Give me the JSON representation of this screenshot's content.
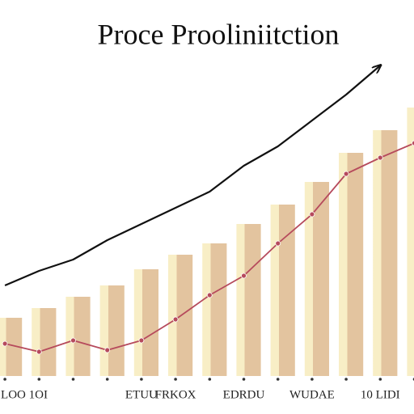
{
  "chart_data": {
    "type": "bar",
    "title": "Proce Prooliniitction",
    "categories": [
      "LOO 1OI",
      null,
      null,
      null,
      "ETUU",
      "FRKOX",
      null,
      "EDRDU",
      null,
      "WUDAE",
      null,
      "10 LIDI",
      null
    ],
    "values": [
      18,
      21,
      24.5,
      28,
      33,
      37.5,
      41,
      47,
      53,
      60,
      69,
      76,
      83
    ],
    "bar_colors": [
      "#f8eec6",
      "#e3c49f"
    ],
    "trend": {
      "color": "#111111",
      "values": [
        28,
        32.5,
        36,
        42,
        47,
        52,
        57,
        65,
        71,
        79,
        87,
        96,
        null
      ]
    },
    "line": {
      "color": "#b64a5c",
      "values": [
        10,
        7.5,
        11,
        8,
        11,
        17.5,
        25,
        31,
        41,
        50,
        62.5,
        67.5,
        72
      ]
    },
    "ylim": [
      0,
      110
    ]
  }
}
